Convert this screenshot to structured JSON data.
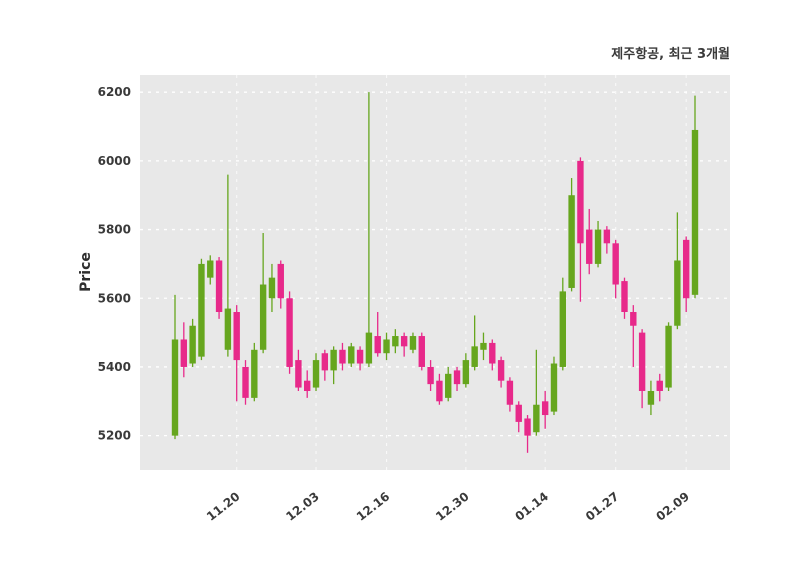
{
  "chart": {
    "title": "제주항공, 최근 3개월",
    "ylabel": "Price"
  },
  "chart_data": {
    "type": "candlestick",
    "title": "제주항공, 최근 3개월",
    "xlabel": "",
    "ylabel": "Price",
    "y_ticks": [
      5200,
      5400,
      5600,
      5800,
      6000,
      6200
    ],
    "y_domain": [
      5100,
      6250
    ],
    "x_tick_labels": [
      "11.20",
      "12.03",
      "12.16",
      "12.30",
      "01.14",
      "01.27",
      "02.09"
    ],
    "x_tick_indices": [
      7,
      16,
      24,
      33,
      42,
      50,
      58
    ],
    "legend": "none",
    "grid": "on",
    "up_color": "#66a61e",
    "down_color": "#e7298a",
    "panel_bg": "#e8e8e8",
    "grid_color": "#ffffff",
    "candle_format": "open,high,low,close",
    "candles": [
      [
        5200,
        5610,
        5190,
        5480
      ],
      [
        5480,
        5530,
        5370,
        5400
      ],
      [
        5410,
        5540,
        5400,
        5520
      ],
      [
        5430,
        5715,
        5420,
        5700
      ],
      [
        5660,
        5725,
        5640,
        5710
      ],
      [
        5710,
        5720,
        5540,
        5560
      ],
      [
        5450,
        5960,
        5430,
        5570
      ],
      [
        5560,
        5580,
        5300,
        5420
      ],
      [
        5400,
        5420,
        5290,
        5310
      ],
      [
        5310,
        5470,
        5300,
        5450
      ],
      [
        5450,
        5790,
        5440,
        5640
      ],
      [
        5600,
        5700,
        5560,
        5660
      ],
      [
        5700,
        5710,
        5570,
        5600
      ],
      [
        5600,
        5620,
        5380,
        5400
      ],
      [
        5420,
        5450,
        5330,
        5340
      ],
      [
        5360,
        5390,
        5310,
        5330
      ],
      [
        5340,
        5440,
        5330,
        5420
      ],
      [
        5440,
        5450,
        5360,
        5390
      ],
      [
        5390,
        5460,
        5350,
        5450
      ],
      [
        5450,
        5470,
        5390,
        5410
      ],
      [
        5410,
        5470,
        5400,
        5460
      ],
      [
        5450,
        5460,
        5390,
        5410
      ],
      [
        5410,
        6200,
        5400,
        5500
      ],
      [
        5490,
        5560,
        5430,
        5440
      ],
      [
        5440,
        5500,
        5420,
        5480
      ],
      [
        5460,
        5510,
        5440,
        5490
      ],
      [
        5490,
        5500,
        5430,
        5460
      ],
      [
        5450,
        5500,
        5440,
        5490
      ],
      [
        5490,
        5500,
        5390,
        5400
      ],
      [
        5400,
        5420,
        5330,
        5350
      ],
      [
        5360,
        5380,
        5290,
        5300
      ],
      [
        5310,
        5400,
        5300,
        5380
      ],
      [
        5390,
        5400,
        5330,
        5350
      ],
      [
        5350,
        5440,
        5340,
        5420
      ],
      [
        5400,
        5550,
        5390,
        5460
      ],
      [
        5450,
        5500,
        5420,
        5470
      ],
      [
        5470,
        5480,
        5390,
        5410
      ],
      [
        5420,
        5430,
        5340,
        5360
      ],
      [
        5360,
        5370,
        5270,
        5290
      ],
      [
        5290,
        5300,
        5210,
        5240
      ],
      [
        5250,
        5260,
        5150,
        5200
      ],
      [
        5210,
        5450,
        5200,
        5290
      ],
      [
        5300,
        5330,
        5220,
        5260
      ],
      [
        5270,
        5430,
        5260,
        5410
      ],
      [
        5400,
        5660,
        5390,
        5620
      ],
      [
        5630,
        5950,
        5620,
        5900
      ],
      [
        6000,
        6010,
        5590,
        5760
      ],
      [
        5800,
        5860,
        5670,
        5700
      ],
      [
        5700,
        5825,
        5690,
        5800
      ],
      [
        5800,
        5810,
        5730,
        5760
      ],
      [
        5760,
        5770,
        5600,
        5640
      ],
      [
        5650,
        5660,
        5540,
        5560
      ],
      [
        5560,
        5580,
        5400,
        5520
      ],
      [
        5500,
        5510,
        5280,
        5330
      ],
      [
        5290,
        5360,
        5260,
        5330
      ],
      [
        5360,
        5380,
        5300,
        5330
      ],
      [
        5340,
        5530,
        5330,
        5520
      ],
      [
        5520,
        5850,
        5510,
        5710
      ],
      [
        5770,
        5780,
        5560,
        5600
      ],
      [
        5610,
        6190,
        5600,
        6090
      ]
    ]
  }
}
